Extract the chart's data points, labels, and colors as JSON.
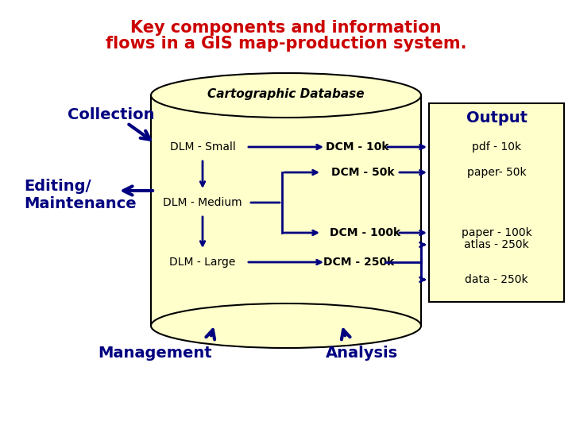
{
  "title_line1": "Key components and information",
  "title_line2": "flows in a GIS map-production system.",
  "title_color": "#cc0000",
  "title_fontsize": 15,
  "db_label": "Cartographic Database",
  "blue_dark": "#00008B",
  "navy": "#000080",
  "db_fill": "#ffffcc",
  "db_ellipse_fill": "#ffffcc",
  "db_stroke": "#000000",
  "output_box_fill": "#ffffcc",
  "output_box_stroke": "#000000",
  "output_label": "Output",
  "collection_label": "Collection",
  "editing_label": "Editing/\nMaintenance",
  "management_label": "Management",
  "analysis_label": "Analysis",
  "dlm_small": "DLM - Small",
  "dlm_medium": "DLM - Medium",
  "dlm_large": "DLM - Large",
  "dcm_10k": "DCM - 10k",
  "dcm_50k": "DCM - 50k",
  "dcm_100k": "DCM - 100k",
  "dcm_250k": "DCM - 250k",
  "out_pdf": "pdf - 10k",
  "out_paper50": "paper- 50k",
  "out_paper100": "paper - 100k",
  "out_atlas": "atlas - 250k",
  "out_data": "data - 250k"
}
